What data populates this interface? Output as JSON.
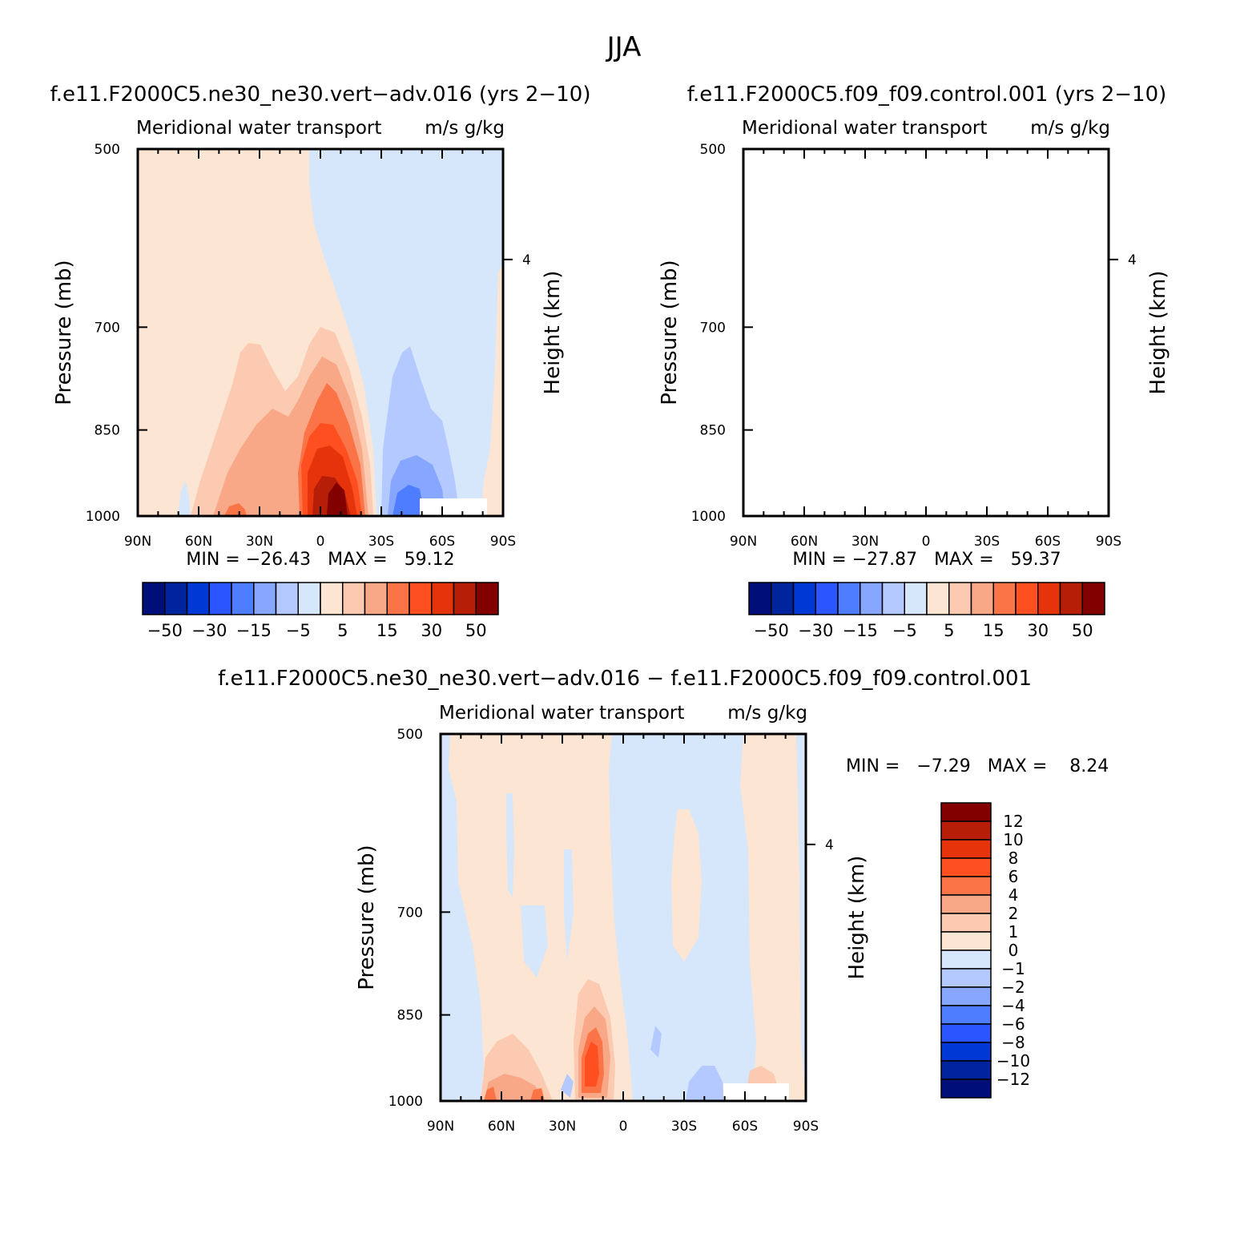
{
  "figure_title": "JJA",
  "palette": {
    "main_fill": [
      "#000e7a",
      "#00239e",
      "#0038d6",
      "#2a55ff",
      "#4f7dff",
      "#86a6ff",
      "#b4c9ff",
      "#d7e7fb",
      "#fde5d3",
      "#fbcab0",
      "#f8a887",
      "#fa7448",
      "#fd4f1f",
      "#e5340c",
      "#b71e08",
      "#820000"
    ],
    "diff_fill": [
      "#000e7a",
      "#00239e",
      "#0038d6",
      "#2a55ff",
      "#4f7dff",
      "#86a6ff",
      "#b4c9ff",
      "#d7e7fb",
      "#fde5d3",
      "#fbcab0",
      "#f8a887",
      "#fa7448",
      "#fd4f1f",
      "#e5340c",
      "#b71e08",
      "#820000"
    ]
  },
  "chart_data": [
    {
      "type": "heatmap",
      "title": "f.e11.F2000C5.ne30_ne30.vert−adv.016 (yrs 2−10)",
      "subtitle_left": "Meridional water transport",
      "subtitle_right": "m/s g/kg",
      "ylabel": "Pressure (mb)",
      "ylabel_right": "Height (km)",
      "xticks": [
        "90N",
        "60N",
        "30N",
        "0",
        "30S",
        "60S",
        "90S"
      ],
      "yticks": [
        "500",
        "700",
        "850",
        "1000"
      ],
      "right_ticks": [
        "4"
      ],
      "ylim": [
        1000,
        500
      ],
      "stats": "MIN = −26.43   MAX =   59.12",
      "colorbar_labels": [
        "−50",
        "−30",
        "−15",
        "−5",
        "5",
        "15",
        "30",
        "50"
      ]
    },
    {
      "type": "heatmap",
      "title": "f.e11.F2000C5.f09_f09.control.001 (yrs 2−10)",
      "subtitle_left": "Meridional water transport",
      "subtitle_right": "m/s g/kg",
      "ylabel": "Pressure (mb)",
      "ylabel_right": "Height (km)",
      "xticks": [
        "90N",
        "60N",
        "30N",
        "0",
        "30S",
        "60S",
        "90S"
      ],
      "yticks": [
        "500",
        "700",
        "850",
        "1000"
      ],
      "right_ticks": [
        "4"
      ],
      "ylim": [
        1000,
        500
      ],
      "stats": "MIN = −27.87   MAX =   59.37",
      "colorbar_labels": [
        "−50",
        "−30",
        "−15",
        "−5",
        "5",
        "15",
        "30",
        "50"
      ]
    },
    {
      "type": "heatmap",
      "title": "f.e11.F2000C5.ne30_ne30.vert−adv.016 − f.e11.F2000C5.f09_f09.control.001",
      "subtitle_left": "Meridional water transport",
      "subtitle_right": "m/s g/kg",
      "ylabel": "Pressure (mb)",
      "ylabel_right": "Height (km)",
      "xticks": [
        "90N",
        "60N",
        "30N",
        "0",
        "30S",
        "60S",
        "90S"
      ],
      "yticks": [
        "500",
        "700",
        "850",
        "1000"
      ],
      "right_ticks": [
        "4"
      ],
      "ylim": [
        1000,
        500
      ],
      "stats": "MIN =   −7.29   MAX =    8.24",
      "colorbar_labels": [
        "12",
        "10",
        "8",
        "6",
        "4",
        "2",
        "1",
        "0",
        "−1",
        "−2",
        "−4",
        "−6",
        "−8",
        "−10",
        "−12"
      ]
    }
  ]
}
